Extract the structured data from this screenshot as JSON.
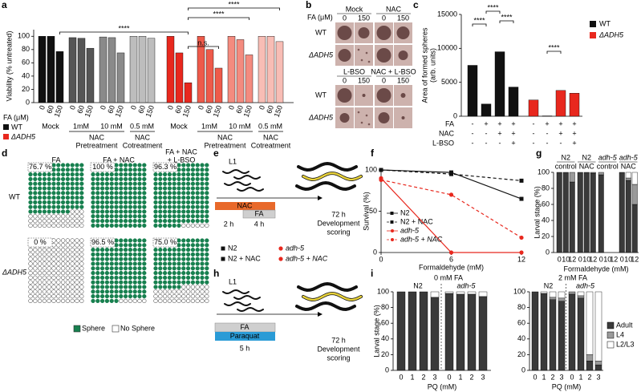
{
  "panel_labels": [
    "a",
    "b",
    "c",
    "d",
    "e",
    "f",
    "g",
    "h",
    "i"
  ],
  "panel_b": {
    "axis_label": "FA (μM)",
    "blocks": [
      {
        "conditions": [
          "Mock",
          "NAC"
        ],
        "levels": [
          "0",
          "150",
          "0",
          "150"
        ],
        "rows": [
          "WT",
          "ΔADH5"
        ]
      },
      {
        "conditions": [
          "L-BSO",
          "NAC + L-BSO"
        ],
        "levels": [
          "0",
          "150",
          "0",
          "150"
        ],
        "rows": [
          "WT",
          "ΔADH5"
        ]
      }
    ]
  },
  "panel_e": {
    "stage": "L1",
    "treatments": [
      "NAC",
      "FA"
    ],
    "durations": [
      "2 h",
      "4 h"
    ],
    "endpoint": [
      "72 h",
      "Development",
      "scoring"
    ]
  },
  "panel_h": {
    "stage": "L1",
    "treatments": [
      "FA",
      "Paraquat"
    ],
    "durations": [
      "5 h"
    ],
    "endpoint": [
      "72 h",
      "Development",
      "scoring"
    ]
  },
  "chart_data": [
    {
      "type": "grouped_bar",
      "ylabel": "Viability (% untreated)",
      "xlabel": "FA (μM)",
      "ylim": [
        0,
        110
      ],
      "yticks": [
        0,
        20,
        40,
        60,
        80,
        100
      ],
      "fa_levels": [
        "0",
        "60",
        "150"
      ],
      "groups": [
        {
          "label": "Mock",
          "color": "#111111",
          "values": [
            100,
            100,
            77
          ]
        },
        {
          "label": "1mM",
          "color": "#555555",
          "values": [
            98,
            97,
            82
          ]
        },
        {
          "label": "10 mM",
          "color": "#8a8a8a",
          "values": [
            99,
            98,
            75
          ]
        },
        {
          "label": "0.5 mM",
          "color": "#bdbdbd",
          "values": [
            100,
            100,
            97
          ]
        },
        {
          "label": "Mock",
          "color": "#e8281e",
          "values": [
            100,
            75,
            30
          ]
        },
        {
          "label": "1mM",
          "color": "#ee5a4a",
          "values": [
            100,
            80,
            52
          ]
        },
        {
          "label": "10 mM",
          "color": "#f48b7f",
          "values": [
            100,
            95,
            72
          ]
        },
        {
          "label": "0.5 mM",
          "color": "#f8bdb5",
          "values": [
            100,
            100,
            92
          ]
        }
      ],
      "spans": [
        [
          "NAC",
          "Pretreatment"
        ],
        [
          "NAC",
          "Cotreatment"
        ],
        [
          "NAC",
          "Pretreatment"
        ],
        [
          "NAC",
          "Cotreatment"
        ]
      ],
      "legend": [
        {
          "name": "WT",
          "color": "#111111"
        },
        {
          "name": "ΔADH5",
          "color": "#e8281e"
        }
      ],
      "annotations": [
        "****",
        "n.s.",
        "****",
        "****"
      ]
    },
    {
      "type": "bar",
      "ylabel": [
        "Area of formed spheres",
        "(arb. units)"
      ],
      "ylim": [
        0,
        15000
      ],
      "yticks": [
        0,
        5000,
        10000,
        15000
      ],
      "series": [
        {
          "name": "WT",
          "color": "#111111",
          "values": [
            7500,
            1800,
            9500,
            4300
          ]
        },
        {
          "name": "ΔADH5",
          "color": "#e8281e",
          "values": [
            2400,
            50,
            3800,
            3400
          ]
        }
      ],
      "conditions": [
        {
          "label": "FA",
          "signs": [
            "-",
            "+",
            "+",
            "+",
            "-",
            "+",
            "+",
            "+"
          ]
        },
        {
          "label": "NAC",
          "signs": [
            "-",
            "-",
            "+",
            "+",
            "-",
            "-",
            "+",
            "+"
          ]
        },
        {
          "label": "L-BSO",
          "signs": [
            "-",
            "-",
            "-",
            "+",
            "-",
            "-",
            "-",
            "+"
          ]
        }
      ],
      "annotations": [
        "****",
        "****",
        "****",
        "****"
      ]
    },
    {
      "type": "waffle",
      "columns": [
        [
          "FA"
        ],
        [
          "FA + NAC"
        ],
        [
          "FA + NAC",
          "+ L-BSO"
        ]
      ],
      "rows": [
        "WT",
        "ΔADH5"
      ],
      "values": [
        [
          76.7,
          100,
          96.3
        ],
        [
          0,
          96.5,
          75.0
        ]
      ],
      "value_labels": [
        [
          "76.7 %",
          "100 %",
          "96.3 %"
        ],
        [
          "0 %",
          "96.5 %",
          "75.0 %"
        ]
      ],
      "legend": [
        {
          "name": "Sphere",
          "color": "#17804f"
        },
        {
          "name": "No Sphere",
          "color": "#ffffff"
        }
      ]
    },
    {
      "type": "line",
      "xlabel": "Formaldehyde (mM)",
      "ylabel": "Survival (%)",
      "x": [
        0,
        6,
        12
      ],
      "xlim": [
        0,
        12
      ],
      "xticks": [
        0,
        6,
        12
      ],
      "ylim": [
        0,
        100
      ],
      "yticks": [
        0,
        50,
        100
      ],
      "series": [
        {
          "name": "N2",
          "color": "#111111",
          "dashed": false,
          "marker": "square",
          "values": [
            100,
            97,
            65
          ]
        },
        {
          "name": "N2 + NAC",
          "color": "#111111",
          "dashed": true,
          "marker": "square",
          "values": [
            100,
            95,
            87
          ]
        },
        {
          "name": "adh-5",
          "color": "#e8281e",
          "dashed": false,
          "marker": "circle",
          "values": [
            90,
            0,
            0
          ]
        },
        {
          "name": "adh-5 + NAC",
          "color": "#e8281e",
          "dashed": true,
          "marker": "circle",
          "values": [
            88,
            70,
            18
          ]
        }
      ]
    },
    {
      "type": "stacked_bar",
      "xlabel": "Formaldehyde (mM)",
      "ylabel": "Larval stage (%)",
      "ylim": [
        0,
        100
      ],
      "yticks": [
        0,
        20,
        40,
        60,
        80,
        100
      ],
      "groups": [
        {
          "label": "N2",
          "sublabel": "control"
        },
        {
          "label": "N2",
          "sublabel": "NAC"
        },
        {
          "label": "adh-5",
          "sublabel": "control"
        },
        {
          "label": "adh-5",
          "sublabel": "NAC"
        }
      ],
      "categories": [
        "0",
        "10",
        "12",
        "0",
        "10",
        "12",
        "0",
        "10",
        "12",
        "0",
        "10",
        "12"
      ],
      "series": [
        {
          "color": "#3a3a3a",
          "values": [
            100,
            100,
            88,
            100,
            100,
            99,
            97,
            0,
            0,
            100,
            90,
            60
          ]
        },
        {
          "color": "#9a9a9a",
          "values": [
            0,
            0,
            12,
            0,
            0,
            1,
            3,
            0,
            0,
            0,
            3,
            25
          ]
        },
        {
          "color": "#ffffff",
          "values": [
            0,
            0,
            0,
            0,
            0,
            0,
            0,
            0,
            0,
            0,
            7,
            15
          ]
        }
      ]
    },
    {
      "type": "stacked_bar",
      "title": "0 mM FA",
      "xlabel": "PQ (mM)",
      "ylabel": "Larval stage (%)",
      "ylim": [
        0,
        100
      ],
      "yticks": [
        0,
        20,
        40,
        60,
        80,
        100
      ],
      "groups": [
        {
          "label": "N2"
        },
        {
          "label": "adh-5"
        }
      ],
      "categories": [
        "0",
        "1",
        "2",
        "3",
        "0",
        "1",
        "2",
        "3"
      ],
      "series": [
        {
          "color": "#3a3a3a",
          "values": [
            100,
            100,
            100,
            93,
            98,
            97,
            97,
            94
          ]
        },
        {
          "color": "#9a9a9a",
          "values": [
            0,
            0,
            0,
            0,
            0,
            0,
            0,
            0
          ]
        },
        {
          "color": "#ffffff",
          "values": [
            0,
            0,
            0,
            7,
            2,
            3,
            3,
            6
          ]
        }
      ]
    },
    {
      "type": "stacked_bar",
      "title": "2 mM FA",
      "xlabel": "PQ (mM)",
      "ylim": [
        0,
        100
      ],
      "yticks": [
        0,
        20,
        40,
        60,
        80,
        100
      ],
      "groups": [
        {
          "label": "N2"
        },
        {
          "label": "adh-5"
        }
      ],
      "categories": [
        "0",
        "1",
        "2",
        "3",
        "0",
        "1",
        "2",
        "3"
      ],
      "series": [
        {
          "name": "Adult",
          "color": "#3a3a3a",
          "values": [
            100,
            98,
            90,
            88,
            97,
            92,
            12,
            7
          ]
        },
        {
          "name": "L4",
          "color": "#9a9a9a",
          "values": [
            0,
            0,
            3,
            4,
            3,
            3,
            8,
            5
          ]
        },
        {
          "name": "L2/L3",
          "color": "#ffffff",
          "values": [
            0,
            2,
            7,
            8,
            0,
            5,
            80,
            88
          ]
        }
      ]
    }
  ]
}
